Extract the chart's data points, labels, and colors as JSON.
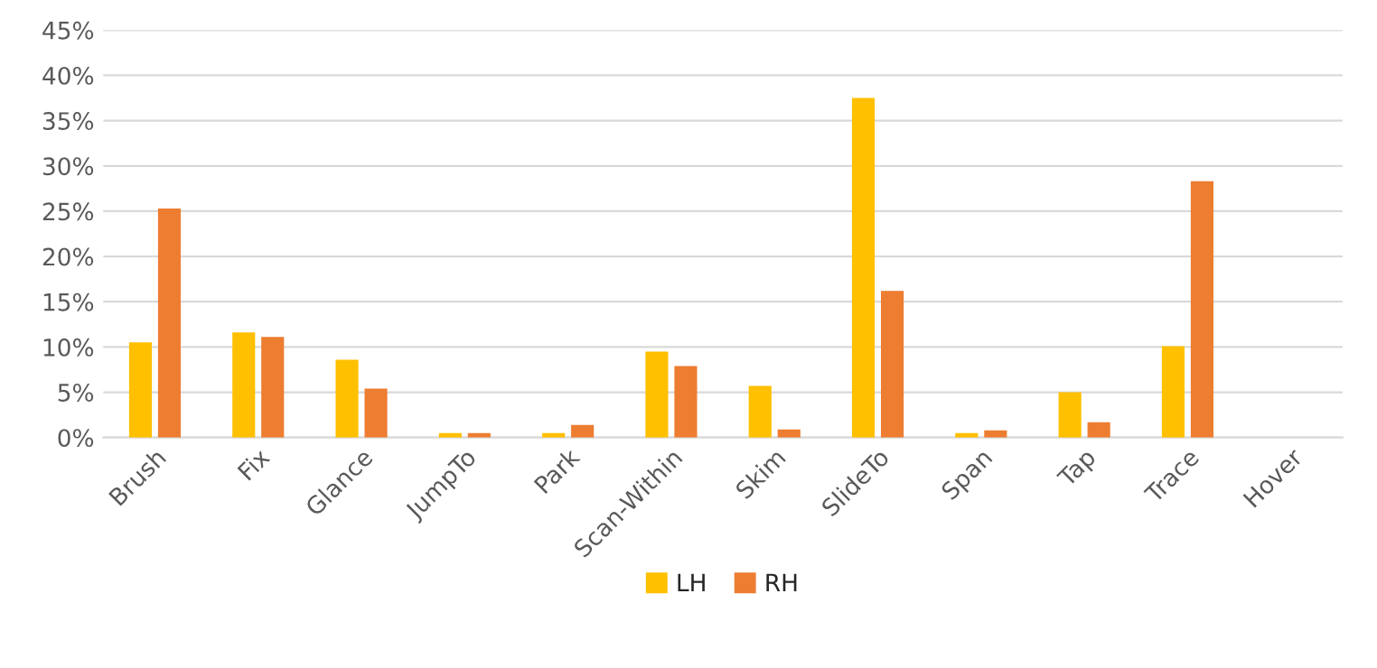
{
  "chart_data": {
    "type": "bar",
    "categories": [
      "Brush",
      "Fix",
      "Glance",
      "JumpTo",
      "Park",
      "Scan-Within",
      "Skim",
      "SlideTo",
      "Span",
      "Tap",
      "Trace",
      "Hover"
    ],
    "series": [
      {
        "name": "LH",
        "color": "#ffc000",
        "values": [
          10.5,
          11.6,
          8.6,
          0.5,
          0.5,
          9.5,
          5.7,
          37.5,
          0.5,
          5.0,
          10.1,
          null
        ]
      },
      {
        "name": "RH",
        "color": "#ed7d31",
        "values": [
          25.3,
          11.1,
          5.4,
          0.5,
          1.4,
          7.9,
          0.9,
          16.2,
          0.8,
          1.7,
          28.3,
          null
        ]
      }
    ],
    "ylim": [
      0,
      45
    ],
    "yticks": [
      {
        "value": 0,
        "label": "0%"
      },
      {
        "value": 5,
        "label": "5%"
      },
      {
        "value": 10,
        "label": "10%"
      },
      {
        "value": 15,
        "label": "15%"
      },
      {
        "value": 20,
        "label": "20%"
      },
      {
        "value": 25,
        "label": "25%"
      },
      {
        "value": 30,
        "label": "30%"
      },
      {
        "value": 35,
        "label": "35%"
      },
      {
        "value": 40,
        "label": "40%"
      },
      {
        "value": 45,
        "label": "45%"
      }
    ],
    "grid": "y",
    "legend": "bottom"
  }
}
